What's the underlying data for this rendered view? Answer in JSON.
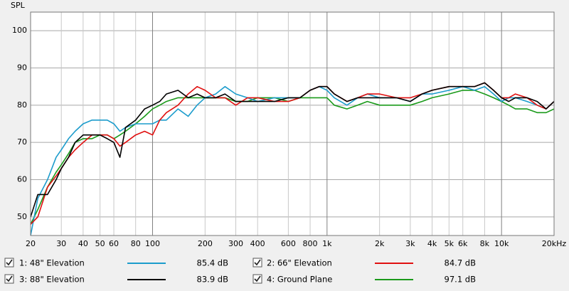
{
  "chart_data": {
    "type": "line",
    "y_label": "SPL",
    "x": [
      20,
      22,
      25,
      28,
      30,
      33,
      36,
      40,
      45,
      50,
      55,
      60,
      65,
      70,
      80,
      90,
      100,
      110,
      120,
      140,
      160,
      180,
      200,
      230,
      260,
      300,
      350,
      400,
      500,
      600,
      700,
      800,
      900,
      1000,
      1100,
      1300,
      1500,
      1700,
      2000,
      2500,
      3000,
      3500,
      4000,
      5000,
      6000,
      7000,
      8000,
      9000,
      10000,
      11000,
      12000,
      14000,
      16000,
      18000,
      20000
    ],
    "series": [
      {
        "name": "1: 48\" Elevation",
        "color": "#1c9ccc",
        "level_label": "85.4 dB",
        "values": [
          45,
          55,
          60,
          66,
          68,
          71,
          73,
          75,
          76,
          76,
          76,
          75,
          73,
          74,
          75,
          75,
          75,
          76,
          76,
          79,
          77,
          80,
          82,
          83,
          85,
          83,
          82,
          81,
          82,
          82,
          82,
          84,
          85,
          84,
          82,
          80,
          82,
          83,
          82,
          82,
          81,
          83,
          83,
          84,
          85,
          84,
          85,
          83,
          81,
          82,
          82,
          81,
          80,
          79,
          81
        ]
      },
      {
        "name": "2: 66\" Elevation",
        "color": "#e01010",
        "level_label": "84.7 dB",
        "values": [
          48,
          50,
          58,
          61,
          63,
          66,
          68,
          70,
          72,
          72,
          72,
          71,
          69,
          70,
          72,
          73,
          72,
          76,
          78,
          80,
          83,
          85,
          84,
          82,
          82,
          80,
          82,
          82,
          81,
          81,
          82,
          84,
          85,
          85,
          83,
          81,
          82,
          83,
          83,
          82,
          82,
          83,
          84,
          85,
          85,
          85,
          86,
          84,
          82,
          82,
          83,
          82,
          80,
          79,
          81
        ]
      },
      {
        "name": "3: 88\" Elevation",
        "color": "#000000",
        "level_label": "83.9 dB",
        "values": [
          50,
          56,
          56,
          60,
          63,
          66,
          70,
          72,
          72,
          72,
          71,
          70,
          66,
          74,
          76,
          79,
          80,
          81,
          83,
          84,
          82,
          83,
          82,
          82,
          83,
          81,
          81,
          81,
          81,
          82,
          82,
          84,
          85,
          85,
          83,
          81,
          82,
          82,
          82,
          82,
          81,
          83,
          84,
          85,
          85,
          85,
          86,
          84,
          82,
          81,
          82,
          82,
          81,
          79,
          81
        ]
      },
      {
        "name": "4: Ground Plane",
        "color": "#1a9a1a",
        "level_label": "97.1 dB",
        "values": [
          48,
          52,
          58,
          62,
          64,
          67,
          70,
          71,
          71,
          72,
          72,
          71,
          72,
          73,
          75,
          77,
          79,
          80,
          81,
          82,
          82,
          82,
          82,
          82,
          82,
          81,
          81,
          82,
          82,
          81,
          82,
          82,
          82,
          82,
          80,
          79,
          80,
          81,
          80,
          80,
          80,
          81,
          82,
          83,
          84,
          84,
          83,
          82,
          81,
          80,
          79,
          79,
          78,
          78,
          79
        ]
      }
    ],
    "log_x": true,
    "xlim": [
      20,
      20000
    ],
    "xticks": [
      20,
      30,
      40,
      50,
      60,
      80,
      100,
      200,
      300,
      400,
      600,
      800,
      {
        "value": 1000,
        "label": "1k"
      },
      {
        "value": 2000,
        "label": "2k"
      },
      {
        "value": 3000,
        "label": "3k"
      },
      {
        "value": 4000,
        "label": "4k"
      },
      {
        "value": 5000,
        "label": "5k"
      },
      {
        "value": 6000,
        "label": "6k"
      },
      {
        "value": 8000,
        "label": "8k"
      },
      {
        "value": 10000,
        "label": "10k"
      },
      {
        "value": 20000,
        "label": "20kHz"
      }
    ],
    "ylim": [
      45,
      105
    ],
    "yticks": [
      50,
      60,
      70,
      80,
      90,
      100
    ],
    "grid": true
  }
}
